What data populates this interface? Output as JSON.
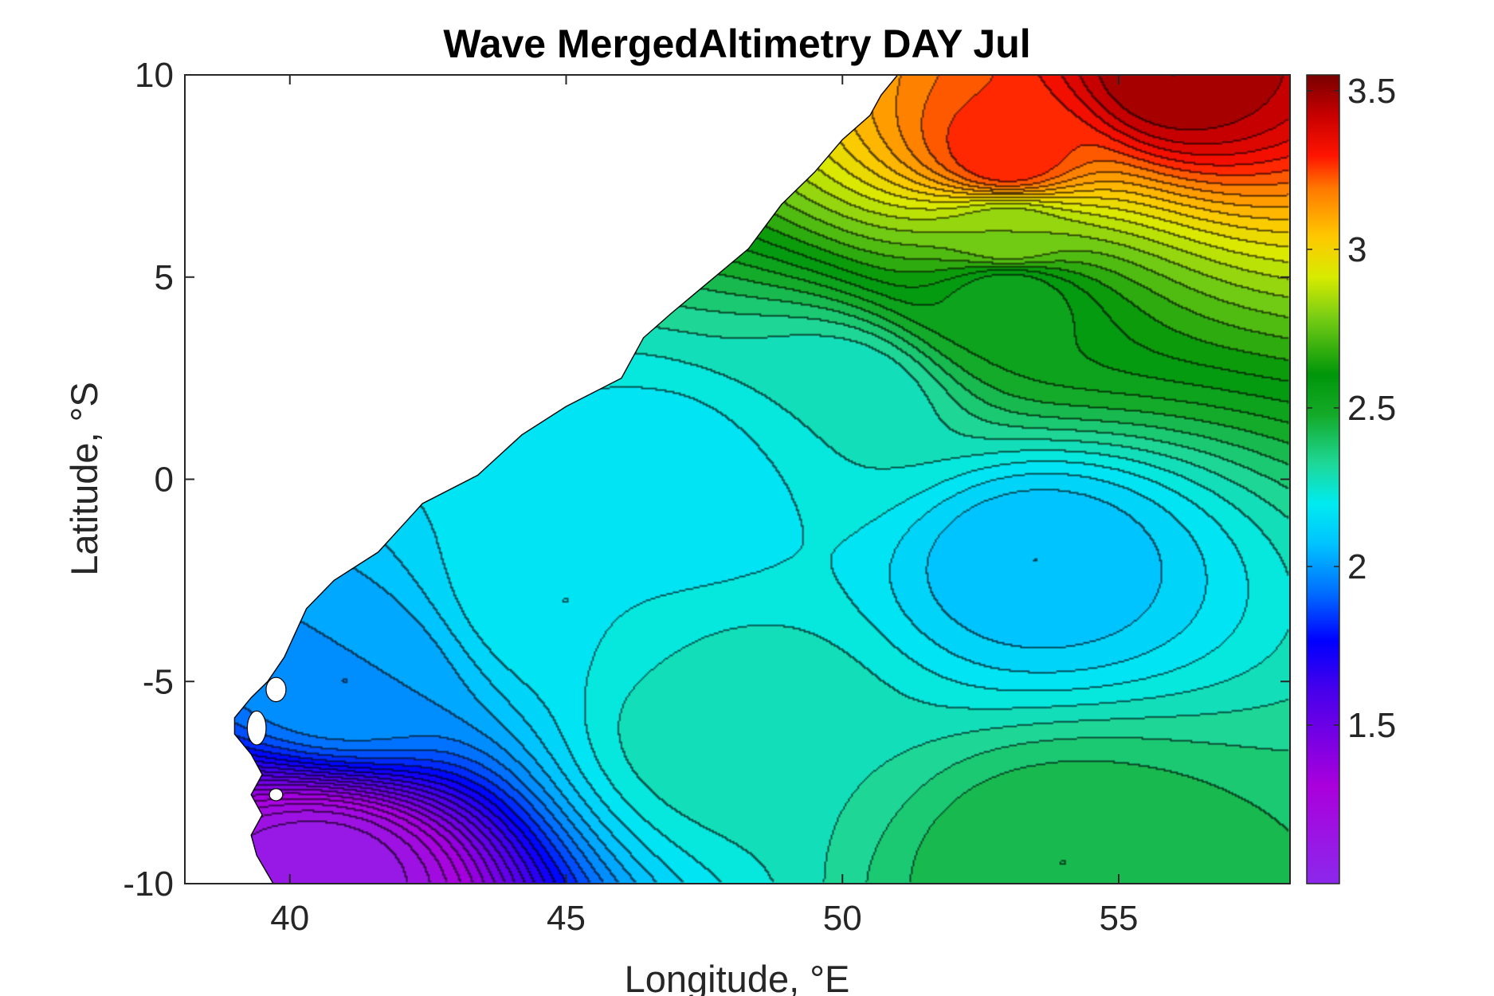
{
  "chart_data": {
    "type": "heatmap",
    "subtype": "filled-contour-map",
    "title": "Wave MergedAltimetry DAY Jul",
    "xlabel": "Longitude, °E",
    "ylabel": "Latitude, °S",
    "xlim": [
      38.1,
      58.1
    ],
    "ylim": [
      -10,
      10
    ],
    "x_ticks": [
      40,
      45,
      50,
      55
    ],
    "x_tick_labels": [
      "40",
      "45",
      "50",
      "55"
    ],
    "y_ticks": [
      10,
      5,
      0,
      -5,
      -10
    ],
    "y_tick_labels": [
      "10",
      "5",
      "0",
      "-5",
      "-10"
    ],
    "colorbar": {
      "range": [
        1.0,
        3.55
      ],
      "ticks": [
        3.5,
        3,
        2.5,
        2,
        1.5
      ],
      "tick_labels": [
        "3.5",
        "3",
        "2.5",
        "2",
        "1.5"
      ],
      "colormap": "rainbow (violet-blue-cyan-green-yellow-red-darkred)"
    },
    "grid": false,
    "contour_line_color": "#000000",
    "land_color": "#ffffff",
    "coastline": [
      [
        51.0,
        10
      ],
      [
        50.7,
        9.5
      ],
      [
        50.5,
        9.0
      ],
      [
        50.0,
        8.4
      ],
      [
        49.5,
        7.6
      ],
      [
        48.9,
        6.8
      ],
      [
        48.3,
        5.7
      ],
      [
        47.6,
        4.9
      ],
      [
        46.9,
        4.1
      ],
      [
        46.4,
        3.5
      ],
      [
        46.0,
        2.5
      ],
      [
        45.0,
        1.8
      ],
      [
        44.2,
        1.1
      ],
      [
        43.4,
        0.1
      ],
      [
        42.4,
        -0.6
      ],
      [
        41.6,
        -1.8
      ],
      [
        40.8,
        -2.5
      ],
      [
        40.3,
        -3.2
      ],
      [
        39.9,
        -4.4
      ],
      [
        39.6,
        -5.0
      ],
      [
        39.3,
        -5.4
      ],
      [
        39.0,
        -5.9
      ],
      [
        39.0,
        -6.3
      ],
      [
        39.3,
        -6.8
      ],
      [
        39.5,
        -7.3
      ],
      [
        39.3,
        -7.8
      ],
      [
        39.5,
        -8.3
      ],
      [
        39.3,
        -8.8
      ],
      [
        39.4,
        -9.3
      ],
      [
        39.7,
        -10
      ]
    ],
    "islands": [
      {
        "name": "Pemba",
        "center": [
          39.75,
          -5.2
        ],
        "rx": 0.18,
        "ry": 0.3
      },
      {
        "name": "Zanzibar",
        "center": [
          39.4,
          -6.15
        ],
        "rx": 0.17,
        "ry": 0.42
      },
      {
        "name": "Mafia",
        "center": [
          39.75,
          -7.8
        ],
        "rx": 0.12,
        "ry": 0.15
      }
    ],
    "field_description": "Mean significant wave height; maximum ~3.5 near 56E 10N, minimum ~1.1 near 40E 10S, secondary low ~2.05 near 53.5E 2S",
    "sample_values": [
      {
        "lon": 56,
        "lat": 10,
        "value": 3.5
      },
      {
        "lon": 53,
        "lat": 8,
        "value": 3.3
      },
      {
        "lon": 53,
        "lat": 6,
        "value": 2.8
      },
      {
        "lon": 53,
        "lat": 4.5,
        "value": 2.5
      },
      {
        "lon": 50,
        "lat": 2,
        "value": 2.25
      },
      {
        "lon": 47,
        "lat": 0,
        "value": 2.15
      },
      {
        "lon": 53.5,
        "lat": -2,
        "value": 2.05
      },
      {
        "lon": 45,
        "lat": -3,
        "value": 2.2
      },
      {
        "lon": 48,
        "lat": -6,
        "value": 2.3
      },
      {
        "lon": 54,
        "lat": -9.5,
        "value": 2.45
      },
      {
        "lon": 41,
        "lat": -5,
        "value": 2.0
      },
      {
        "lon": 40.5,
        "lat": -9.8,
        "value": 1.1
      }
    ]
  }
}
